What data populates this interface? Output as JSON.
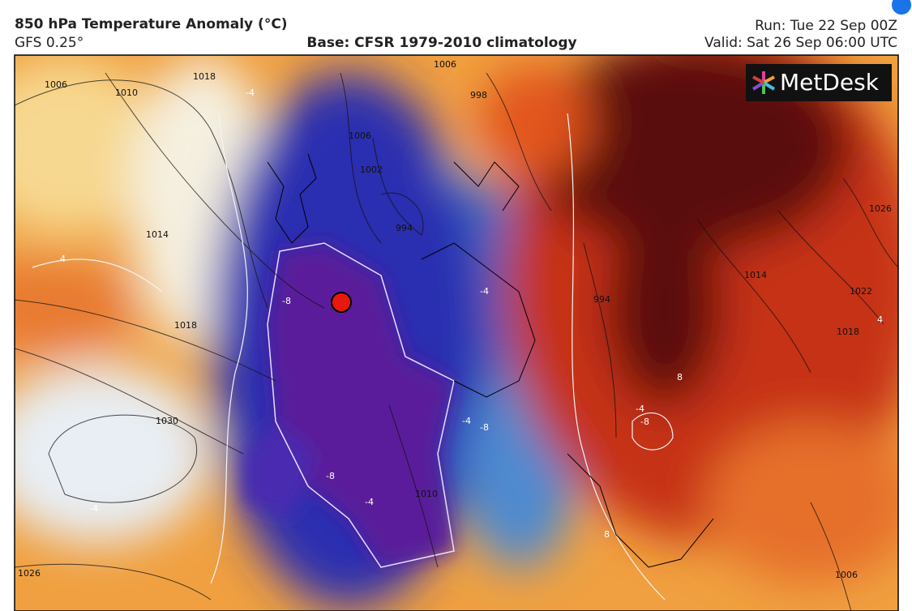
{
  "header": {
    "title": "850 hPa Temperature Anomaly (°C)",
    "model": "GFS 0.25°",
    "base": "Base: CFSR 1979-2010 climatology",
    "run": "Run: Tue 22 Sep 00Z",
    "valid": "Valid: Sat 26 Sep 06:00 UTC"
  },
  "map": {
    "logo": "MetDesk",
    "pressure_labels": [
      "1006",
      "1010",
      "1018",
      "1014",
      "1018",
      "1030",
      "1026",
      "1002",
      "1006",
      "994",
      "1006",
      "998",
      "994",
      "1014",
      "1022",
      "1018",
      "1026",
      "1010",
      "1006"
    ],
    "anomaly_labels": [
      "-4",
      "4",
      "-8",
      "-4",
      "-4",
      "-8",
      "-8",
      "-4",
      "-4",
      "8",
      "-4",
      "-8",
      "8",
      "4"
    ]
  }
}
